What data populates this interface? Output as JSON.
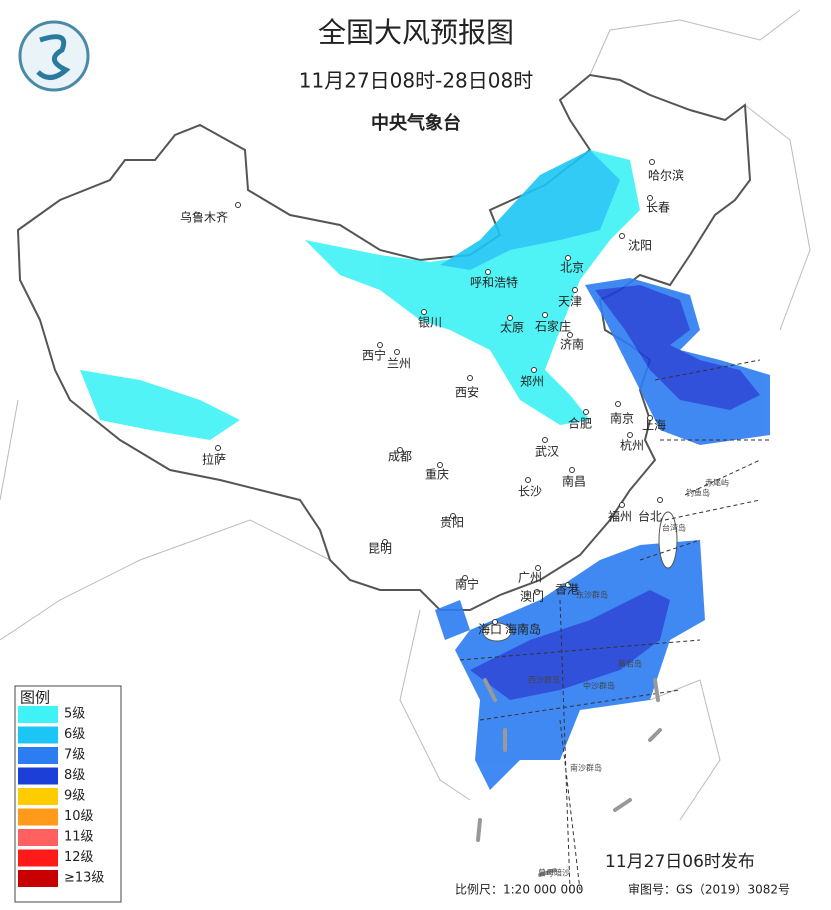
{
  "header": {
    "title": "全国大风预报图",
    "period": "11月27日08时-28日08时",
    "agency": "中央气象台"
  },
  "legend": {
    "title": "图例",
    "items": [
      {
        "label": "5级",
        "color": "#3ef2f5"
      },
      {
        "label": "6级",
        "color": "#1cc6f4"
      },
      {
        "label": "7级",
        "color": "#2c7df2"
      },
      {
        "label": "8级",
        "color": "#1c3fd8"
      },
      {
        "label": "9级",
        "color": "#ffcc00"
      },
      {
        "label": "10级",
        "color": "#ff9a1a"
      },
      {
        "label": "11级",
        "color": "#ff6060"
      },
      {
        "label": "12级",
        "color": "#ff1a1a"
      },
      {
        "label": "≥13级",
        "color": "#c80000"
      }
    ]
  },
  "cities": [
    "哈尔滨",
    "长春",
    "沈阳",
    "乌鲁木齐",
    "呼和浩特",
    "北京",
    "天津",
    "银川",
    "太原",
    "石家庄",
    "济南",
    "西宁",
    "兰州",
    "郑州",
    "西安",
    "合肥",
    "南京",
    "上海",
    "杭州",
    "武汉",
    "成都",
    "重庆",
    "长沙",
    "南昌",
    "拉萨",
    "贵阳",
    "福州",
    "台北",
    "昆明",
    "南宁",
    "广州",
    "香港",
    "澳门",
    "海口"
  ],
  "islands": [
    "海南岛",
    "赤尾屿",
    "钓鱼岛",
    "台湾岛",
    "东沙群岛",
    "黄岩岛",
    "中沙群岛",
    "西沙群岛",
    "南沙群岛",
    "曾母暗沙"
  ],
  "footer": {
    "issued": "11月27日06时发布",
    "scale": "比例尺：1:20 000 000",
    "review": "审图号：GS（2019）3082号"
  }
}
